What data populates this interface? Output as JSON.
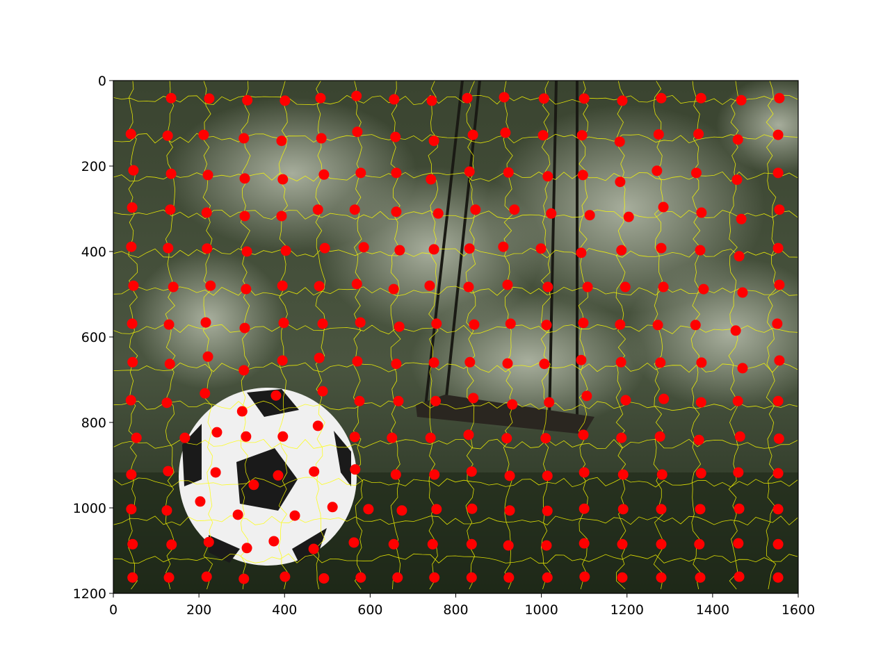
{
  "chart_data": {
    "type": "scatter",
    "color": "#ff0000",
    "xlim": [
      0,
      1600
    ],
    "ylim": [
      1200,
      0
    ],
    "xticks": [
      0,
      200,
      400,
      600,
      800,
      1000,
      1200,
      1400,
      1600
    ],
    "yticks": [
      0,
      200,
      400,
      600,
      800,
      1000,
      1200
    ],
    "grid": false,
    "x": [
      135,
      224,
      313,
      401,
      484,
      568,
      656,
      744,
      827,
      913,
      1006,
      1100,
      1189,
      1280,
      1373,
      1467,
      1556,
      41,
      127,
      211,
      305,
      393,
      486,
      570,
      659,
      749,
      840,
      916,
      1004,
      1095,
      1183,
      1274,
      1367,
      1459,
      1553,
      47,
      135,
      221,
      307,
      396,
      492,
      578,
      661,
      742,
      832,
      923,
      1015,
      1097,
      1184,
      1270,
      1362,
      1457,
      1553,
      44,
      133,
      218,
      307,
      393,
      478,
      564,
      661,
      759,
      846,
      937,
      1023,
      1113,
      1204,
      1285,
      1374,
      1467,
      1556,
      42,
      128,
      219,
      312,
      403,
      494,
      585,
      669,
      749,
      832,
      911,
      999,
      1093,
      1187,
      1280,
      1371,
      1462,
      1553,
      47,
      140,
      227,
      310,
      395,
      481,
      569,
      655,
      739,
      830,
      921,
      1015,
      1108,
      1196,
      1285,
      1379,
      1470,
      1556,
      44,
      130,
      216,
      307,
      398,
      489,
      577,
      668,
      755,
      843,
      928,
      1012,
      1098,
      1184,
      1272,
      1360,
      1454,
      1551,
      45,
      132,
      221,
      305,
      395,
      481,
      570,
      661,
      749,
      833,
      921,
      1007,
      1093,
      1186,
      1278,
      1374,
      1470,
      1556,
      41,
      125,
      214,
      301,
      380,
      489,
      575,
      666,
      753,
      841,
      932,
      1018,
      1106,
      1197,
      1286,
      1373,
      1459,
      1553,
      54,
      167,
      242,
      310,
      396,
      478,
      564,
      651,
      741,
      830,
      919,
      1010,
      1098,
      1187,
      1277,
      1368,
      1464,
      1555,
      42,
      128,
      239,
      328,
      385,
      469,
      565,
      660,
      750,
      837,
      926,
      1014,
      1100,
      1191,
      1282,
      1373,
      1460,
      1553,
      42,
      125,
      203,
      291,
      424,
      512,
      596,
      674,
      755,
      838,
      926,
      1014,
      1100,
      1191,
      1280,
      1371,
      1462,
      1553,
      45,
      136,
      223,
      312,
      375,
      468,
      562,
      655,
      746,
      837,
      923,
      1012,
      1100,
      1189,
      1280,
      1369,
      1460,
      1553,
      45,
      130,
      218,
      305,
      401,
      492,
      578,
      664,
      750,
      837,
      924,
      1014,
      1101,
      1189,
      1280,
      1371,
      1462,
      1553
    ],
    "values": [
      41,
      42,
      46,
      47,
      41,
      36,
      44,
      47,
      41,
      39,
      42,
      42,
      47,
      41,
      41,
      46,
      41,
      125,
      129,
      127,
      135,
      141,
      135,
      120,
      132,
      141,
      127,
      122,
      128,
      128,
      143,
      126,
      125,
      138,
      127,
      210,
      218,
      221,
      229,
      231,
      220,
      216,
      216,
      231,
      213,
      215,
      224,
      221,
      237,
      211,
      216,
      232,
      216,
      297,
      302,
      309,
      317,
      317,
      302,
      302,
      307,
      311,
      302,
      302,
      311,
      315,
      319,
      296,
      309,
      324,
      302,
      389,
      392,
      393,
      400,
      398,
      392,
      390,
      397,
      395,
      393,
      389,
      393,
      403,
      397,
      392,
      397,
      411,
      392,
      480,
      483,
      480,
      488,
      480,
      481,
      476,
      488,
      480,
      483,
      478,
      483,
      483,
      483,
      483,
      488,
      496,
      478,
      569,
      571,
      566,
      579,
      567,
      569,
      566,
      576,
      569,
      571,
      569,
      572,
      567,
      571,
      572,
      572,
      585,
      569,
      659,
      663,
      646,
      678,
      655,
      649,
      657,
      663,
      660,
      659,
      662,
      663,
      654,
      659,
      660,
      660,
      673,
      655,
      748,
      754,
      732,
      774,
      737,
      727,
      750,
      750,
      750,
      743,
      758,
      753,
      738,
      748,
      745,
      753,
      750,
      750,
      836,
      836,
      823,
      833,
      833,
      808,
      834,
      836,
      836,
      829,
      837,
      837,
      829,
      836,
      833,
      841,
      833,
      838,
      922,
      914,
      917,
      946,
      924,
      915,
      910,
      922,
      922,
      915,
      925,
      925,
      917,
      922,
      922,
      919,
      917,
      919,
      1003,
      1006,
      985,
      1016,
      1018,
      998,
      1003,
      1006,
      1003,
      1002,
      1006,
      1007,
      1002,
      1003,
      1003,
      1003,
      1002,
      1003,
      1085,
      1086,
      1080,
      1094,
      1078,
      1096,
      1081,
      1085,
      1085,
      1085,
      1088,
      1088,
      1083,
      1085,
      1085,
      1085,
      1083,
      1085,
      1163,
      1163,
      1161,
      1166,
      1161,
      1165,
      1163,
      1163,
      1163,
      1163,
      1163,
      1163,
      1161,
      1163,
      1163,
      1163,
      1161,
      1163
    ]
  }
}
